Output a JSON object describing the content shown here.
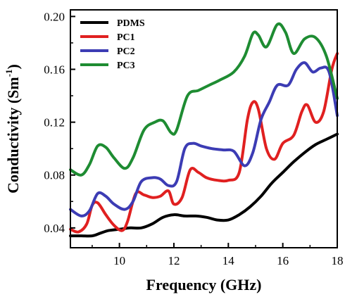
{
  "chart_data": {
    "type": "line",
    "xlabel": "Frequency (GHz)",
    "ylabel_main": "Conductivity (Sm",
    "ylabel_sup": "-1",
    "ylabel_close": ")",
    "xlim": [
      8.2,
      18.0
    ],
    "ylim": [
      0.025,
      0.205
    ],
    "xticks": [
      10,
      12,
      14,
      16,
      18
    ],
    "xtick_labels": [
      "10",
      "12",
      "14",
      "16",
      "18"
    ],
    "yticks": [
      0.04,
      0.08,
      0.12,
      0.16,
      0.2
    ],
    "ytick_labels": [
      "0.04",
      "0.08",
      "0.12",
      "0.16",
      "0.20"
    ],
    "legend_position": "top-left",
    "grid": false,
    "series": [
      {
        "name": "PDMS",
        "color": "#000000",
        "points": [
          [
            8.2,
            0.034
          ],
          [
            8.6,
            0.034
          ],
          [
            9.0,
            0.034
          ],
          [
            9.3,
            0.036
          ],
          [
            9.6,
            0.038
          ],
          [
            10.0,
            0.039
          ],
          [
            10.4,
            0.04
          ],
          [
            10.8,
            0.04
          ],
          [
            11.2,
            0.043
          ],
          [
            11.6,
            0.048
          ],
          [
            12.0,
            0.05
          ],
          [
            12.4,
            0.049
          ],
          [
            12.8,
            0.049
          ],
          [
            13.2,
            0.048
          ],
          [
            13.6,
            0.046
          ],
          [
            14.0,
            0.046
          ],
          [
            14.4,
            0.05
          ],
          [
            14.8,
            0.056
          ],
          [
            15.2,
            0.064
          ],
          [
            15.6,
            0.074
          ],
          [
            16.0,
            0.082
          ],
          [
            16.4,
            0.09
          ],
          [
            16.8,
            0.097
          ],
          [
            17.2,
            0.103
          ],
          [
            17.6,
            0.107
          ],
          [
            18.0,
            0.111
          ]
        ]
      },
      {
        "name": "PC1",
        "color": "#e02020",
        "points": [
          [
            8.2,
            0.039
          ],
          [
            8.5,
            0.037
          ],
          [
            8.8,
            0.043
          ],
          [
            9.0,
            0.057
          ],
          [
            9.2,
            0.059
          ],
          [
            9.5,
            0.05
          ],
          [
            9.8,
            0.042
          ],
          [
            10.1,
            0.038
          ],
          [
            10.3,
            0.045
          ],
          [
            10.6,
            0.066
          ],
          [
            10.9,
            0.065
          ],
          [
            11.2,
            0.063
          ],
          [
            11.5,
            0.064
          ],
          [
            11.8,
            0.068
          ],
          [
            12.0,
            0.058
          ],
          [
            12.3,
            0.063
          ],
          [
            12.6,
            0.084
          ],
          [
            12.9,
            0.082
          ],
          [
            13.2,
            0.078
          ],
          [
            13.6,
            0.076
          ],
          [
            14.0,
            0.076
          ],
          [
            14.4,
            0.082
          ],
          [
            14.7,
            0.122
          ],
          [
            14.9,
            0.135
          ],
          [
            15.1,
            0.13
          ],
          [
            15.4,
            0.1
          ],
          [
            15.7,
            0.092
          ],
          [
            16.0,
            0.104
          ],
          [
            16.4,
            0.11
          ],
          [
            16.7,
            0.128
          ],
          [
            16.9,
            0.133
          ],
          [
            17.2,
            0.12
          ],
          [
            17.5,
            0.128
          ],
          [
            17.8,
            0.16
          ],
          [
            18.0,
            0.172
          ]
        ]
      },
      {
        "name": "PC2",
        "color": "#3c3cb4",
        "points": [
          [
            8.2,
            0.054
          ],
          [
            8.6,
            0.049
          ],
          [
            8.9,
            0.053
          ],
          [
            9.2,
            0.066
          ],
          [
            9.5,
            0.064
          ],
          [
            9.8,
            0.058
          ],
          [
            10.2,
            0.054
          ],
          [
            10.5,
            0.06
          ],
          [
            10.8,
            0.075
          ],
          [
            11.2,
            0.078
          ],
          [
            11.5,
            0.077
          ],
          [
            11.8,
            0.072
          ],
          [
            12.1,
            0.075
          ],
          [
            12.4,
            0.1
          ],
          [
            12.7,
            0.104
          ],
          [
            13.0,
            0.102
          ],
          [
            13.4,
            0.1
          ],
          [
            13.8,
            0.099
          ],
          [
            14.2,
            0.098
          ],
          [
            14.6,
            0.087
          ],
          [
            14.9,
            0.097
          ],
          [
            15.2,
            0.122
          ],
          [
            15.5,
            0.135
          ],
          [
            15.8,
            0.148
          ],
          [
            16.2,
            0.148
          ],
          [
            16.5,
            0.16
          ],
          [
            16.8,
            0.165
          ],
          [
            17.1,
            0.158
          ],
          [
            17.4,
            0.161
          ],
          [
            17.7,
            0.158
          ],
          [
            18.0,
            0.125
          ]
        ]
      },
      {
        "name": "PC3",
        "color": "#1e8c32",
        "points": [
          [
            8.2,
            0.084
          ],
          [
            8.6,
            0.08
          ],
          [
            8.9,
            0.088
          ],
          [
            9.2,
            0.102
          ],
          [
            9.5,
            0.101
          ],
          [
            9.8,
            0.093
          ],
          [
            10.2,
            0.085
          ],
          [
            10.5,
            0.093
          ],
          [
            10.9,
            0.114
          ],
          [
            11.3,
            0.12
          ],
          [
            11.6,
            0.121
          ],
          [
            11.9,
            0.112
          ],
          [
            12.1,
            0.114
          ],
          [
            12.5,
            0.14
          ],
          [
            12.9,
            0.144
          ],
          [
            13.3,
            0.148
          ],
          [
            13.7,
            0.152
          ],
          [
            14.2,
            0.158
          ],
          [
            14.6,
            0.17
          ],
          [
            14.9,
            0.187
          ],
          [
            15.1,
            0.186
          ],
          [
            15.4,
            0.177
          ],
          [
            15.8,
            0.194
          ],
          [
            16.1,
            0.188
          ],
          [
            16.4,
            0.172
          ],
          [
            16.8,
            0.183
          ],
          [
            17.2,
            0.184
          ],
          [
            17.6,
            0.17
          ],
          [
            18.0,
            0.138
          ]
        ]
      }
    ]
  }
}
